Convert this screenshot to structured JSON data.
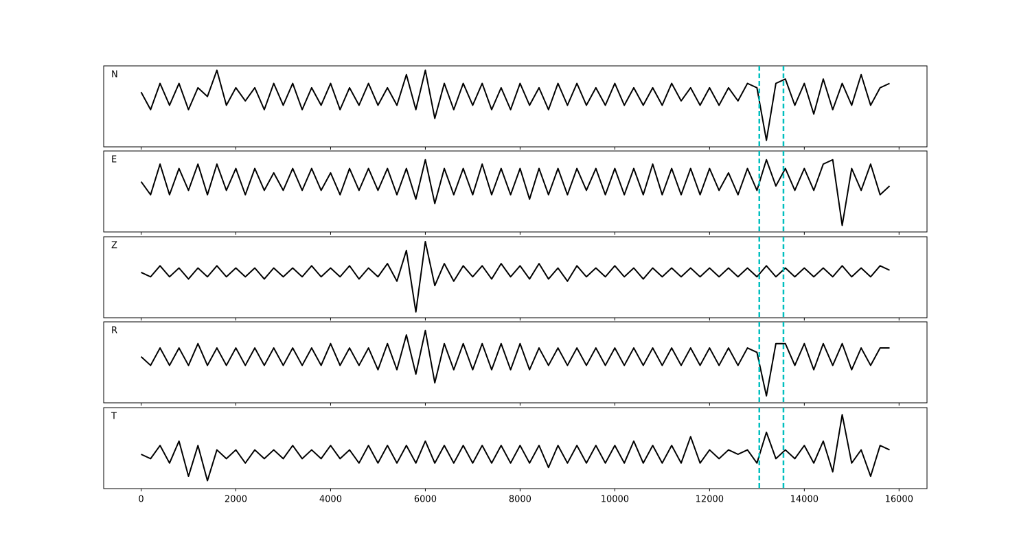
{
  "chart_data": [
    {
      "type": "line",
      "title": "N",
      "color": "#000000",
      "xlim": [
        -790,
        16590
      ],
      "ylim": [
        -1.15,
        0.7
      ],
      "xticks": [
        0,
        2000,
        4000,
        6000,
        8000,
        10000,
        12000,
        14000,
        16000
      ],
      "vlines": [
        13050,
        13560
      ],
      "vline_color": "#00bfbf",
      "x": [
        0,
        200,
        400,
        600,
        800,
        1000,
        1200,
        1400,
        1600,
        1800,
        2000,
        2200,
        2400,
        2600,
        2800,
        3000,
        3200,
        3400,
        3600,
        3800,
        4000,
        4200,
        4400,
        4600,
        4800,
        5000,
        5200,
        5400,
        5600,
        5800,
        6000,
        6200,
        6400,
        6600,
        6800,
        7000,
        7200,
        7400,
        7600,
        7800,
        8000,
        8200,
        8400,
        8600,
        8800,
        9000,
        9200,
        9400,
        9600,
        9800,
        10000,
        10200,
        10400,
        10600,
        10800,
        11000,
        11200,
        11400,
        11600,
        11800,
        12000,
        12200,
        12400,
        12600,
        12800,
        13000,
        13200,
        13400,
        13600,
        13800,
        14000,
        14200,
        14400,
        14600,
        14800,
        15000,
        15200,
        15400,
        15600,
        15800
      ],
      "values": [
        0.1,
        -0.3,
        0.3,
        -0.2,
        0.3,
        -0.3,
        0.2,
        0.0,
        0.6,
        -0.2,
        0.2,
        -0.1,
        0.2,
        -0.3,
        0.3,
        -0.2,
        0.3,
        -0.3,
        0.2,
        -0.2,
        0.3,
        -0.3,
        0.2,
        -0.2,
        0.3,
        -0.2,
        0.2,
        -0.2,
        0.5,
        -0.3,
        0.6,
        -0.5,
        0.3,
        -0.3,
        0.3,
        -0.2,
        0.3,
        -0.3,
        0.2,
        -0.3,
        0.3,
        -0.2,
        0.2,
        -0.3,
        0.3,
        -0.2,
        0.3,
        -0.2,
        0.2,
        -0.2,
        0.3,
        -0.2,
        0.2,
        -0.2,
        0.2,
        -0.2,
        0.3,
        -0.1,
        0.2,
        -0.2,
        0.2,
        -0.2,
        0.2,
        -0.1,
        0.3,
        0.2,
        -1.0,
        0.3,
        0.4,
        -0.2,
        0.3,
        -0.4,
        0.4,
        -0.3,
        0.3,
        -0.2,
        0.5,
        -0.2,
        0.2,
        0.3
      ]
    },
    {
      "type": "line",
      "title": "E",
      "color": "#000000",
      "xlim": [
        -790,
        16590
      ],
      "ylim": [
        -1.15,
        0.7
      ],
      "xticks": [
        0,
        2000,
        4000,
        6000,
        8000,
        10000,
        12000,
        14000,
        16000
      ],
      "vlines": [
        13050,
        13560
      ],
      "vline_color": "#00bfbf",
      "x": [
        0,
        200,
        400,
        600,
        800,
        1000,
        1200,
        1400,
        1600,
        1800,
        2000,
        2200,
        2400,
        2600,
        2800,
        3000,
        3200,
        3400,
        3600,
        3800,
        4000,
        4200,
        4400,
        4600,
        4800,
        5000,
        5200,
        5400,
        5600,
        5800,
        6000,
        6200,
        6400,
        6600,
        6800,
        7000,
        7200,
        7400,
        7600,
        7800,
        8000,
        8200,
        8400,
        8600,
        8800,
        9000,
        9200,
        9400,
        9600,
        9800,
        10000,
        10200,
        10400,
        10600,
        10800,
        11000,
        11200,
        11400,
        11600,
        11800,
        12000,
        12200,
        12400,
        12600,
        12800,
        13000,
        13200,
        13400,
        13600,
        13800,
        14000,
        14200,
        14400,
        14600,
        14800,
        15000,
        15200,
        15400,
        15600,
        15800
      ],
      "values": [
        0.0,
        -0.3,
        0.4,
        -0.3,
        0.3,
        -0.2,
        0.4,
        -0.3,
        0.4,
        -0.2,
        0.3,
        -0.3,
        0.3,
        -0.2,
        0.2,
        -0.2,
        0.3,
        -0.2,
        0.3,
        -0.2,
        0.2,
        -0.3,
        0.3,
        -0.2,
        0.3,
        -0.2,
        0.3,
        -0.3,
        0.3,
        -0.4,
        0.5,
        -0.5,
        0.3,
        -0.3,
        0.3,
        -0.3,
        0.4,
        -0.3,
        0.3,
        -0.3,
        0.3,
        -0.4,
        0.3,
        -0.3,
        0.3,
        -0.3,
        0.3,
        -0.2,
        0.3,
        -0.3,
        0.3,
        -0.3,
        0.3,
        -0.3,
        0.4,
        -0.3,
        0.3,
        -0.3,
        0.3,
        -0.3,
        0.3,
        -0.2,
        0.2,
        -0.3,
        0.3,
        -0.2,
        0.5,
        -0.1,
        0.3,
        -0.2,
        0.3,
        -0.2,
        0.4,
        0.5,
        -1.0,
        0.3,
        -0.2,
        0.4,
        -0.3,
        -0.1
      ]
    },
    {
      "type": "line",
      "title": "Z",
      "color": "#000000",
      "xlim": [
        -790,
        16590
      ],
      "ylim": [
        -1.03,
        0.81
      ],
      "xticks": [
        0,
        2000,
        4000,
        6000,
        8000,
        10000,
        12000,
        14000,
        16000
      ],
      "vlines": [
        13050,
        13560
      ],
      "vline_color": "#00bfbf",
      "x": [
        0,
        200,
        400,
        600,
        800,
        1000,
        1200,
        1400,
        1600,
        1800,
        2000,
        2200,
        2400,
        2600,
        2800,
        3000,
        3200,
        3400,
        3600,
        3800,
        4000,
        4200,
        4400,
        4600,
        4800,
        5000,
        5200,
        5400,
        5600,
        5800,
        6000,
        6200,
        6400,
        6600,
        6800,
        7000,
        7200,
        7400,
        7600,
        7800,
        8000,
        8200,
        8400,
        8600,
        8800,
        9000,
        9200,
        9400,
        9600,
        9800,
        10000,
        10200,
        10400,
        10600,
        10800,
        11000,
        11200,
        11400,
        11600,
        11800,
        12000,
        12200,
        12400,
        12600,
        12800,
        13000,
        13200,
        13400,
        13600,
        13800,
        14000,
        14200,
        14400,
        14600,
        14800,
        15000,
        15200,
        15400,
        15600,
        15800
      ],
      "values": [
        0.0,
        -0.1,
        0.15,
        -0.1,
        0.1,
        -0.15,
        0.1,
        -0.1,
        0.15,
        -0.1,
        0.1,
        -0.1,
        0.1,
        -0.15,
        0.1,
        -0.1,
        0.1,
        -0.1,
        0.15,
        -0.1,
        0.1,
        -0.1,
        0.15,
        -0.15,
        0.1,
        -0.1,
        0.2,
        -0.2,
        0.5,
        -0.9,
        0.7,
        -0.3,
        0.2,
        -0.2,
        0.15,
        -0.1,
        0.15,
        -0.15,
        0.2,
        -0.1,
        0.15,
        -0.15,
        0.2,
        -0.15,
        0.1,
        -0.2,
        0.15,
        -0.1,
        0.1,
        -0.1,
        0.15,
        -0.1,
        0.1,
        -0.15,
        0.1,
        -0.1,
        0.1,
        -0.1,
        0.1,
        -0.1,
        0.1,
        -0.1,
        0.1,
        -0.1,
        0.1,
        -0.1,
        0.15,
        -0.1,
        0.1,
        -0.1,
        0.1,
        -0.1,
        0.1,
        -0.1,
        0.15,
        -0.1,
        0.1,
        -0.1,
        0.15,
        0.05
      ]
    },
    {
      "type": "line",
      "title": "R",
      "color": "#000000",
      "xlim": [
        -790,
        16590
      ],
      "ylim": [
        -1.06,
        0.8
      ],
      "xticks": [
        0,
        2000,
        4000,
        6000,
        8000,
        10000,
        12000,
        14000,
        16000
      ],
      "vlines": [
        13050,
        13560
      ],
      "vline_color": "#00bfbf",
      "x": [
        0,
        200,
        400,
        600,
        800,
        1000,
        1200,
        1400,
        1600,
        1800,
        2000,
        2200,
        2400,
        2600,
        2800,
        3000,
        3200,
        3400,
        3600,
        3800,
        4000,
        4200,
        4400,
        4600,
        4800,
        5000,
        5200,
        5400,
        5600,
        5800,
        6000,
        6200,
        6400,
        6600,
        6800,
        7000,
        7200,
        7400,
        7600,
        7800,
        8000,
        8200,
        8400,
        8600,
        8800,
        9000,
        9200,
        9400,
        9600,
        9800,
        10000,
        10200,
        10400,
        10600,
        10800,
        11000,
        11200,
        11400,
        11600,
        11800,
        12000,
        12200,
        12400,
        12600,
        12800,
        13000,
        13200,
        13400,
        13600,
        13800,
        14000,
        14200,
        14400,
        14600,
        14800,
        15000,
        15200,
        15400,
        15600,
        15800
      ],
      "values": [
        0.0,
        -0.2,
        0.2,
        -0.2,
        0.2,
        -0.2,
        0.3,
        -0.2,
        0.2,
        -0.2,
        0.2,
        -0.2,
        0.2,
        -0.2,
        0.2,
        -0.2,
        0.2,
        -0.2,
        0.2,
        -0.2,
        0.3,
        -0.2,
        0.2,
        -0.2,
        0.2,
        -0.3,
        0.3,
        -0.3,
        0.5,
        -0.4,
        0.6,
        -0.6,
        0.3,
        -0.3,
        0.3,
        -0.3,
        0.3,
        -0.3,
        0.3,
        -0.3,
        0.3,
        -0.3,
        0.2,
        -0.2,
        0.2,
        -0.2,
        0.2,
        -0.2,
        0.2,
        -0.2,
        0.2,
        -0.2,
        0.2,
        -0.2,
        0.2,
        -0.2,
        0.2,
        -0.2,
        0.2,
        -0.2,
        0.2,
        -0.2,
        0.2,
        -0.2,
        0.2,
        0.1,
        -0.9,
        0.3,
        0.3,
        -0.2,
        0.3,
        -0.3,
        0.3,
        -0.2,
        0.3,
        -0.3,
        0.2,
        -0.2,
        0.2,
        0.2
      ]
    },
    {
      "type": "line",
      "title": "T",
      "color": "#000000",
      "xlim": [
        -790,
        16590
      ],
      "ylim": [
        -0.78,
        1.06
      ],
      "xticks": [
        0,
        2000,
        4000,
        6000,
        8000,
        10000,
        12000,
        14000,
        16000
      ],
      "vlines": [
        13050,
        13560
      ],
      "vline_color": "#00bfbf",
      "x": [
        0,
        200,
        400,
        600,
        800,
        1000,
        1200,
        1400,
        1600,
        1800,
        2000,
        2200,
        2400,
        2600,
        2800,
        3000,
        3200,
        3400,
        3600,
        3800,
        4000,
        4200,
        4400,
        4600,
        4800,
        5000,
        5200,
        5400,
        5600,
        5800,
        6000,
        6200,
        6400,
        6600,
        6800,
        7000,
        7200,
        7400,
        7600,
        7800,
        8000,
        8200,
        8400,
        8600,
        8800,
        9000,
        9200,
        9400,
        9600,
        9800,
        10000,
        10200,
        10400,
        10600,
        10800,
        11000,
        11200,
        11400,
        11600,
        11800,
        12000,
        12200,
        12400,
        12600,
        12800,
        13000,
        13200,
        13400,
        13600,
        13800,
        14000,
        14200,
        14400,
        14600,
        14800,
        15000,
        15200,
        15400,
        15600,
        15800
      ],
      "values": [
        0.0,
        -0.1,
        0.2,
        -0.2,
        0.3,
        -0.5,
        0.2,
        -0.6,
        0.1,
        -0.1,
        0.1,
        -0.2,
        0.1,
        -0.1,
        0.1,
        -0.1,
        0.2,
        -0.1,
        0.1,
        -0.1,
        0.2,
        -0.1,
        0.1,
        -0.2,
        0.2,
        -0.2,
        0.2,
        -0.2,
        0.2,
        -0.2,
        0.3,
        -0.2,
        0.2,
        -0.2,
        0.2,
        -0.2,
        0.2,
        -0.2,
        0.2,
        -0.2,
        0.2,
        -0.2,
        0.2,
        -0.3,
        0.2,
        -0.2,
        0.2,
        -0.2,
        0.2,
        -0.2,
        0.2,
        -0.2,
        0.3,
        -0.2,
        0.2,
        -0.2,
        0.2,
        -0.2,
        0.4,
        -0.2,
        0.1,
        -0.1,
        0.1,
        0.0,
        0.1,
        -0.2,
        0.5,
        -0.1,
        0.1,
        -0.1,
        0.2,
        -0.2,
        0.3,
        -0.4,
        0.9,
        -0.2,
        0.1,
        -0.5,
        0.2,
        0.1
      ]
    }
  ]
}
